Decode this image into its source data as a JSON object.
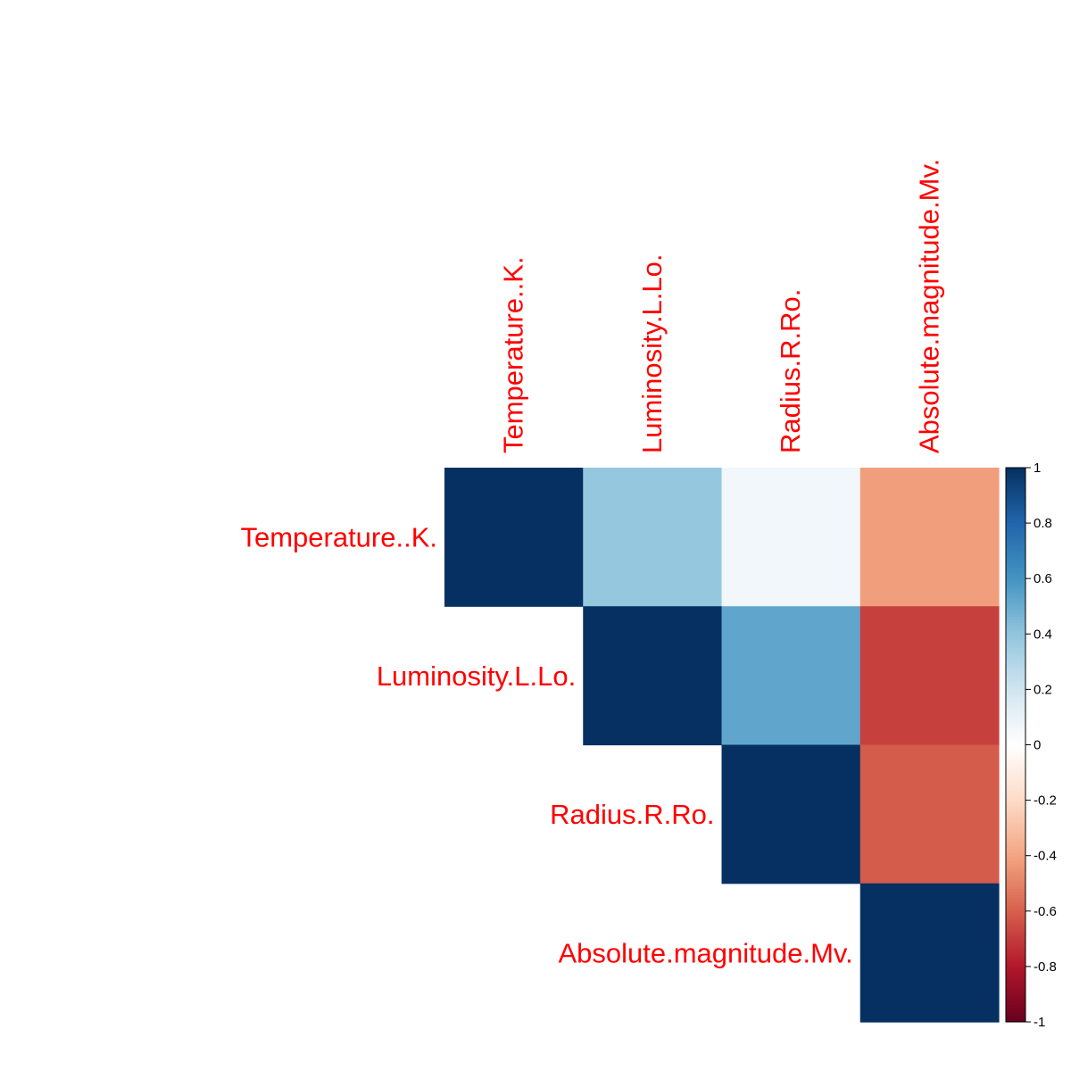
{
  "chart_data": {
    "type": "heatmap",
    "variables": [
      "Temperature..K.",
      "Luminosity.L.Lo.",
      "Radius.R.Ro.",
      "Absolute.magnitude.Mv."
    ],
    "matrix": [
      [
        1.0,
        0.39,
        0.06,
        -0.42
      ],
      [
        0.39,
        1.0,
        0.53,
        -0.69
      ],
      [
        0.06,
        0.53,
        1.0,
        -0.61
      ],
      [
        -0.42,
        -0.69,
        -0.61,
        1.0
      ]
    ],
    "display": "upper triangle",
    "colorbar": {
      "range": [
        -1,
        1
      ],
      "tick_labels": [
        "1",
        "0.8",
        "0.6",
        "0.4",
        "0.2",
        "0",
        "-0.2",
        "-0.4",
        "-0.6",
        "-0.8",
        "-1"
      ],
      "tick_values": [
        1,
        0.8,
        0.6,
        0.4,
        0.2,
        0,
        -0.2,
        -0.4,
        -0.6,
        -0.8,
        -1
      ]
    },
    "label_color": "#ff0000",
    "colors": {
      "negative": "#67001f",
      "zero": "#ffffff",
      "positive": "#053061"
    }
  }
}
